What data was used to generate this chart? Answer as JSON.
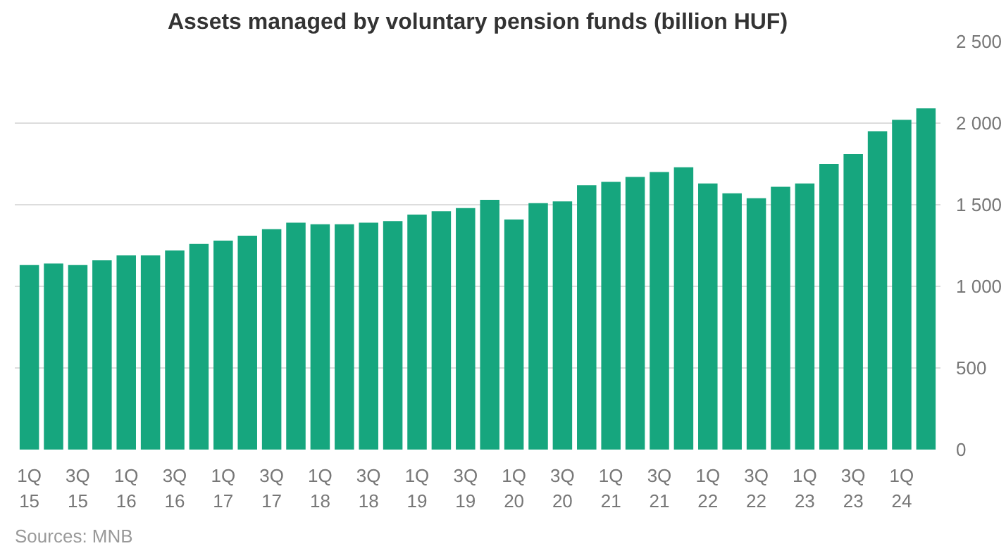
{
  "chart_data": {
    "type": "bar",
    "title": "Assets managed by voluntary pension funds (billion HUF)",
    "categories": [
      "1Q\n15",
      null,
      "3Q\n15",
      null,
      "1Q\n16",
      null,
      "3Q\n16",
      null,
      "1Q\n17",
      null,
      "3Q\n17",
      null,
      "1Q\n18",
      null,
      "3Q\n18",
      null,
      "1Q\n19",
      null,
      "3Q\n19",
      null,
      "1Q\n20",
      null,
      "3Q\n20",
      null,
      "1Q\n21",
      null,
      "3Q\n21",
      null,
      "1Q\n22",
      null,
      "3Q\n22",
      null,
      "1Q\n23",
      null,
      "3Q\n23",
      null,
      "1Q\n24",
      null
    ],
    "values": [
      1130,
      1140,
      1130,
      1160,
      1190,
      1190,
      1220,
      1260,
      1280,
      1310,
      1350,
      1390,
      1380,
      1380,
      1390,
      1400,
      1440,
      1460,
      1480,
      1530,
      1410,
      1510,
      1520,
      1620,
      1640,
      1670,
      1700,
      1730,
      1630,
      1570,
      1540,
      1610,
      1630,
      1750,
      1810,
      1950,
      2020,
      2090
    ],
    "color": "#16a67e",
    "ylim": [
      0,
      2500
    ],
    "yticks": [
      0,
      500,
      {
        "value": 1000,
        "label": "1 000"
      },
      {
        "value": 1500,
        "label": "1 500"
      },
      {
        "value": 2000,
        "label": "2 000"
      },
      {
        "value": 2500,
        "label": "2 500"
      }
    ],
    "grid": "y",
    "annotations": [
      "Sources: MNB"
    ]
  }
}
